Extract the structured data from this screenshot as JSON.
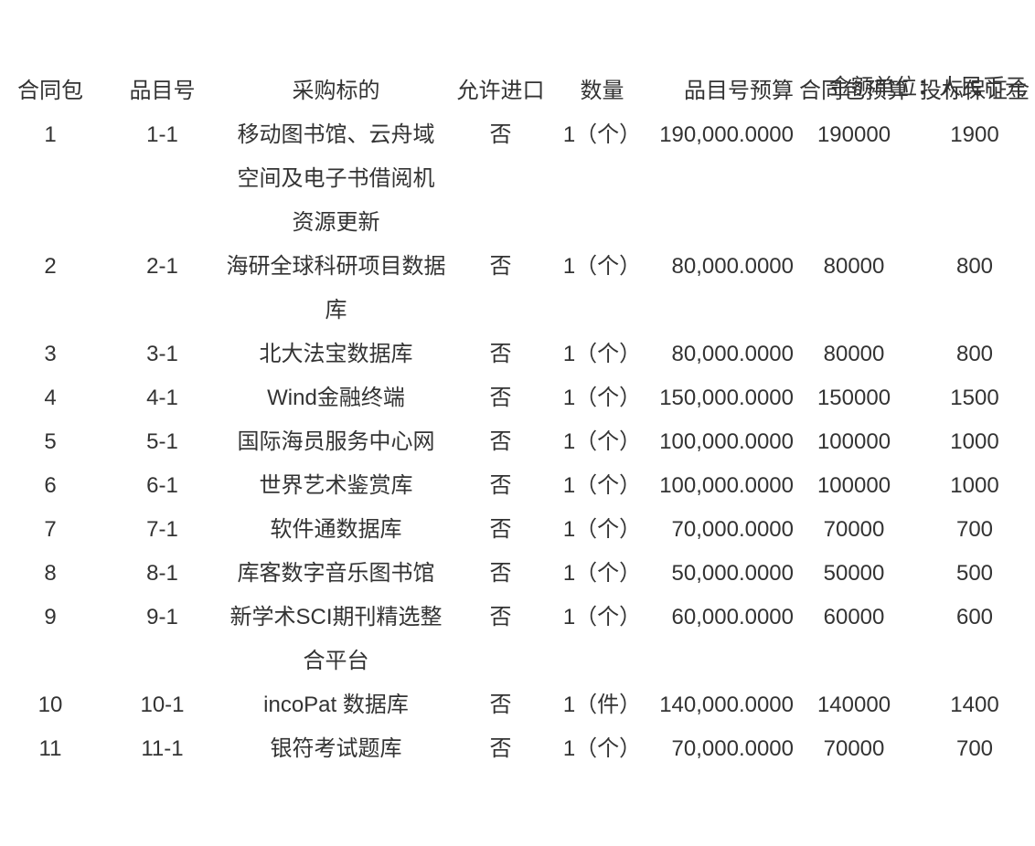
{
  "meta": {
    "unit_label": "金额单位：人民币元"
  },
  "colors": {
    "text": "#333333",
    "background": "#ffffff"
  },
  "table": {
    "headers": [
      "合同包",
      "品目号",
      "采购标的",
      "允许进口",
      "数量",
      "品目号预算",
      "合同包预算",
      "投标保证金"
    ],
    "rows": [
      [
        "1",
        "1-1",
        "移动图书馆、云舟域\n空间及电子书借阅机\n资源更新",
        "否",
        "1（个）",
        "190,000.0000",
        "190000",
        "1900"
      ],
      [
        "2",
        "2-1",
        "海研全球科研项目数据\n库",
        "否",
        "1（个）",
        "80,000.0000",
        "80000",
        "800"
      ],
      [
        "3",
        "3-1",
        "北大法宝数据库",
        "否",
        "1（个）",
        "80,000.0000",
        "80000",
        "800"
      ],
      [
        "4",
        "4-1",
        "Wind金融终端",
        "否",
        "1（个）",
        "150,000.0000",
        "150000",
        "1500"
      ],
      [
        "5",
        "5-1",
        "国际海员服务中心网",
        "否",
        "1（个）",
        "100,000.0000",
        "100000",
        "1000"
      ],
      [
        "6",
        "6-1",
        "世界艺术鉴赏库",
        "否",
        "1（个）",
        "100,000.0000",
        "100000",
        "1000"
      ],
      [
        "7",
        "7-1",
        "软件通数据库",
        "否",
        "1（个）",
        "70,000.0000",
        "70000",
        "700"
      ],
      [
        "8",
        "8-1",
        "库客数字音乐图书馆",
        "否",
        "1（个）",
        "50,000.0000",
        "50000",
        "500"
      ],
      [
        "9",
        "9-1",
        "新学术SCI期刊精选整\n合平台",
        "否",
        "1（个）",
        "60,000.0000",
        "60000",
        "600"
      ],
      [
        "10",
        "10-1",
        "incoPat 数据库",
        "否",
        "1（件）",
        "140,000.0000",
        "140000",
        "1400"
      ],
      [
        "11",
        "11-1",
        "银符考试题库",
        "否",
        "1（个）",
        "70,000.0000",
        "70000",
        "700"
      ]
    ]
  }
}
